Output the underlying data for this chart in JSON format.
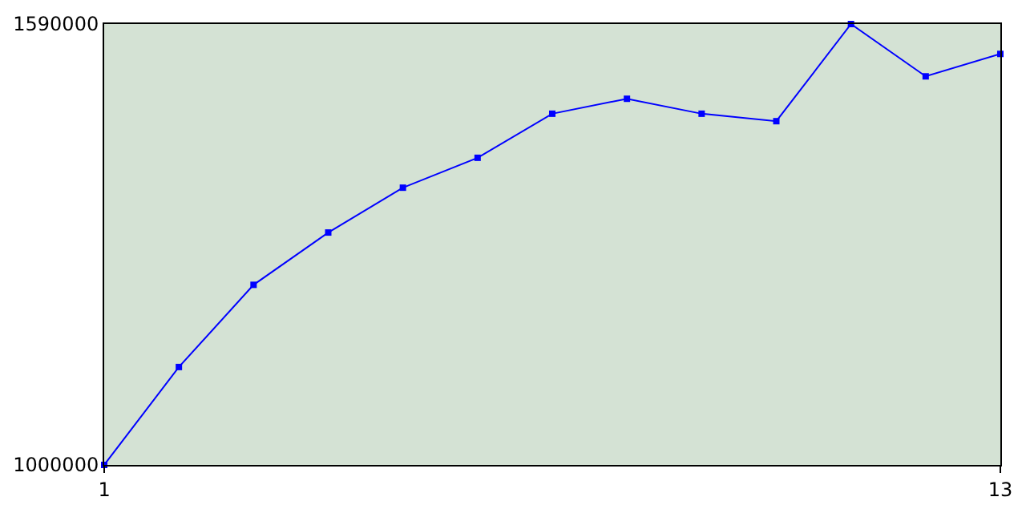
{
  "chart_data": {
    "type": "line",
    "x": [
      1,
      2,
      3,
      4,
      5,
      6,
      7,
      8,
      9,
      10,
      11,
      12,
      13
    ],
    "series": [
      {
        "color": "#0000ff",
        "values": [
          1000000,
          1131000,
          1241000,
          1311000,
          1371000,
          1411000,
          1470000,
          1490000,
          1470000,
          1460000,
          1590000,
          1520000,
          1550000
        ]
      }
    ],
    "xlim": [
      1,
      13
    ],
    "xticks": [
      1,
      13
    ],
    "ylim": [
      1000000,
      1590000
    ],
    "yticks": [
      1000000,
      1590000
    ],
    "marker": "square",
    "line_style": "solid"
  }
}
